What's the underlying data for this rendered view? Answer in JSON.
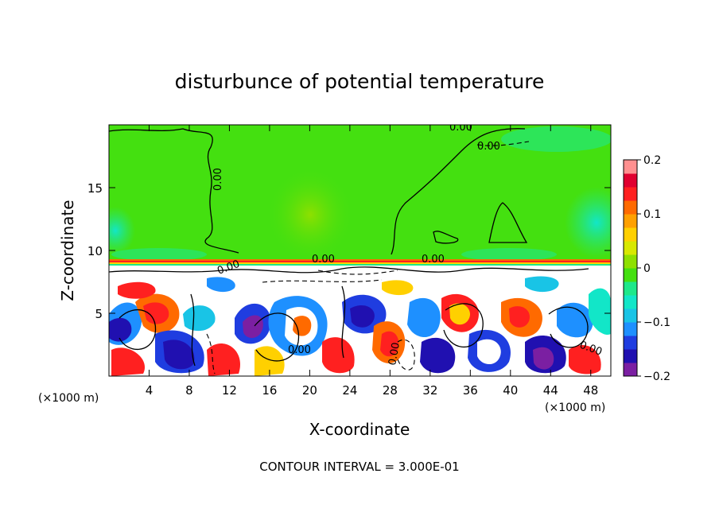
{
  "chart_data": {
    "type": "heatmap",
    "title": "disturbunce of potential temperature",
    "xlabel": "X-coordinate",
    "ylabel": "Z-coordinate",
    "x_unit_label": "(×1000 m)",
    "y_unit_label": "(×1000 m)",
    "xlim": [
      0,
      50
    ],
    "ylim": [
      0,
      20
    ],
    "x_ticks": [
      4,
      8,
      12,
      16,
      20,
      24,
      28,
      32,
      36,
      40,
      44,
      48
    ],
    "y_ticks": [
      5,
      10,
      15
    ],
    "colorbar": {
      "min": -0.2,
      "max": 0.2,
      "tick_labels": [
        "0.2",
        "0.1",
        "0",
        "−0.1",
        "−0.2"
      ],
      "tick_values": [
        0.2,
        0.1,
        0,
        -0.1,
        -0.2
      ],
      "colors": [
        "#7b1fa2",
        "#2010b0",
        "#1f3de0",
        "#1e90ff",
        "#19c4e6",
        "#12e6c8",
        "#1ee88a",
        "#44e010",
        "#8ee000",
        "#d8e800",
        "#ffd000",
        "#ffa000",
        "#ff6a00",
        "#ff2020",
        "#e00030",
        "#ff9090"
      ]
    },
    "contour_labels": [
      "0.00",
      "0.00",
      "0.00",
      "0.00",
      "0.00",
      "0.00",
      "0.00",
      "0.00",
      "0.00"
    ],
    "contour_interval_text": "CONTOUR INTERVAL = 3.000E-01"
  }
}
